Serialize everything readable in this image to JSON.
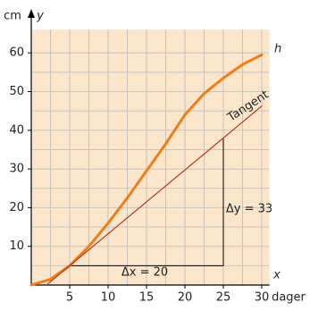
{
  "chart_data": {
    "type": "line",
    "y_unit": "cm",
    "y_label": "y",
    "x_label": "x",
    "x_unit": "dager",
    "xlim": [
      0,
      31
    ],
    "ylim": [
      0,
      66
    ],
    "xticks": [
      5,
      10,
      15,
      20,
      25,
      30
    ],
    "yticks": [
      10,
      20,
      30,
      40,
      50,
      60
    ],
    "grid": true,
    "minor_grid": true,
    "background": "#fbe6cc",
    "series": [
      {
        "name": "h",
        "color": "#f07d1a",
        "x": [
          0,
          2.5,
          5,
          7.5,
          10,
          12.5,
          15,
          17.5,
          20,
          22.5,
          25,
          27.5,
          30
        ],
        "values": [
          0,
          1.5,
          5,
          10,
          16,
          22.5,
          29.5,
          36.5,
          44,
          49.5,
          53.5,
          57,
          59.5
        ]
      },
      {
        "name": "Tangent",
        "color": "#b23a22",
        "x": [
          2,
          30
        ],
        "values": [
          0.05,
          46.25
        ]
      }
    ],
    "triangle": {
      "color": "#000000",
      "x": [
        5,
        25,
        25
      ],
      "values": [
        5,
        5,
        38
      ]
    },
    "dx_label": "Δx = 20",
    "dy_label": "Δy = 33"
  }
}
